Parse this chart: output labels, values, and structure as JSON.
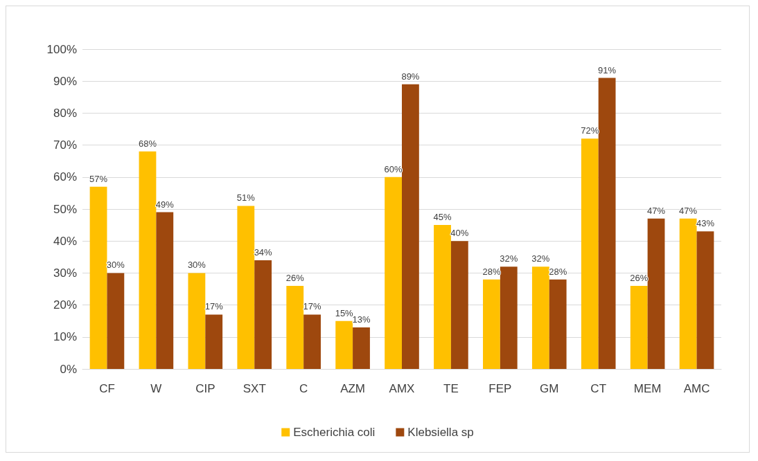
{
  "chart_data": {
    "type": "bar",
    "categories": [
      "CF",
      "W",
      "CIP",
      "SXT",
      "C",
      "AZM",
      "AMX",
      "TE",
      "FEP",
      "GM",
      "CT",
      "MEM",
      "AMC"
    ],
    "series": [
      {
        "name": "Escherichia coli",
        "color": "#ffc000",
        "values": [
          57,
          68,
          30,
          51,
          26,
          15,
          60,
          45,
          28,
          32,
          72,
          26,
          47
        ],
        "value_labels": [
          "57%",
          "68%",
          "30%",
          "51%",
          "26%",
          "15%",
          "60%",
          "45%",
          "28%",
          "32%",
          "72%",
          "26%",
          "47%"
        ]
      },
      {
        "name": "Klebsiella sp",
        "color": "#9e480e",
        "values": [
          30,
          49,
          17,
          34,
          17,
          13,
          89,
          40,
          32,
          28,
          91,
          47,
          43
        ],
        "value_labels": [
          "30%",
          "49%",
          "17%",
          "34%",
          "17%",
          "13%",
          "89%",
          "40%",
          "32%",
          "28%",
          "91%",
          "47%",
          "43%"
        ]
      }
    ],
    "ylim": [
      0,
      100
    ],
    "yticks": [
      {
        "value": 0,
        "label": "0%"
      },
      {
        "value": 10,
        "label": "10%"
      },
      {
        "value": 20,
        "label": "20%"
      },
      {
        "value": 30,
        "label": "30%"
      },
      {
        "value": 40,
        "label": "40%"
      },
      {
        "value": 50,
        "label": "50%"
      },
      {
        "value": 60,
        "label": "60%"
      },
      {
        "value": 70,
        "label": "70%"
      },
      {
        "value": 80,
        "label": "80%"
      },
      {
        "value": 90,
        "label": "90%"
      },
      {
        "value": 100,
        "label": "100%"
      }
    ],
    "grid": true,
    "legend": "bottom"
  }
}
